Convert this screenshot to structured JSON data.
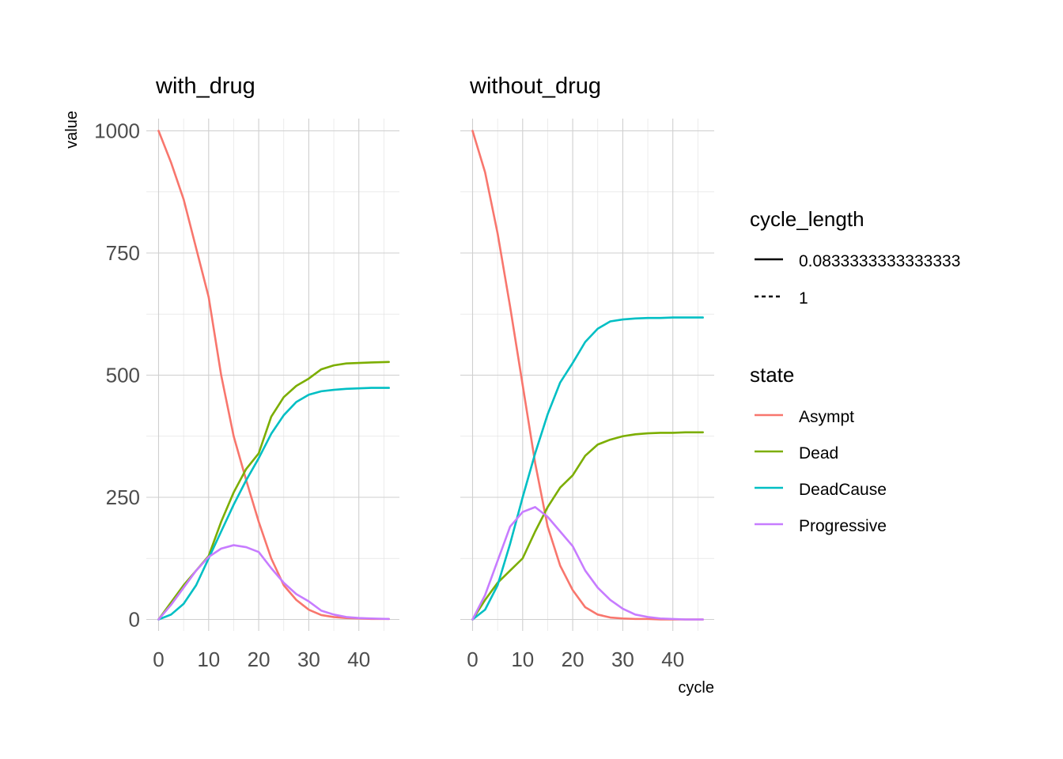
{
  "chart_data": {
    "type": "line",
    "xlabel": "cycle",
    "ylabel": "value",
    "xlim": [
      0,
      46
    ],
    "ylim": [
      0,
      1000
    ],
    "x_ticks": [
      0,
      10,
      20,
      30,
      40
    ],
    "y_ticks": [
      0,
      250,
      500,
      750,
      1000
    ],
    "x_tick_labels": [
      "0",
      "10",
      "20",
      "30",
      "40"
    ],
    "y_tick_labels": [
      "0",
      "250",
      "500",
      "750",
      "1000"
    ],
    "grid": true,
    "legend_position": "right",
    "legends": [
      {
        "title": "cycle_length",
        "items": [
          {
            "label": "0.0833333333333333",
            "dash": "solid"
          },
          {
            "label": "1",
            "dash": "dashed"
          }
        ]
      },
      {
        "title": "state",
        "items": [
          {
            "label": "Asympt",
            "color": "#F8766D"
          },
          {
            "label": "Dead",
            "color": "#7CAE00"
          },
          {
            "label": "DeadCause",
            "color": "#00BFC4"
          },
          {
            "label": "Progressive",
            "color": "#C77CFF"
          }
        ]
      }
    ],
    "panels": [
      {
        "title": "with_drug",
        "x": [
          0,
          2.5,
          5,
          7.5,
          10,
          12.5,
          15,
          17.5,
          20,
          22.5,
          25,
          27.5,
          30,
          32.5,
          35,
          37.5,
          40,
          42.5,
          46
        ],
        "series": [
          {
            "name": "Asympt",
            "color": "#F8766D",
            "values": [
              1000,
              935,
              860,
              760,
              660,
              500,
              375,
              285,
              200,
              125,
              70,
              40,
              20,
              9,
              5,
              3,
              2,
              1,
              1
            ]
          },
          {
            "name": "Dead",
            "color": "#7CAE00",
            "values": [
              0,
              35,
              70,
              100,
              130,
              200,
              260,
              308,
              340,
              415,
              455,
              478,
              493,
              512,
              520,
              524,
              525,
              526,
              527
            ]
          },
          {
            "name": "DeadCause",
            "color": "#00BFC4",
            "values": [
              0,
              10,
              32,
              70,
              125,
              180,
              235,
              285,
              330,
              380,
              418,
              445,
              460,
              467,
              470,
              472,
              473,
              474,
              474
            ]
          },
          {
            "name": "Progressive",
            "color": "#C77CFF",
            "values": [
              0,
              30,
              65,
              100,
              128,
              145,
              152,
              148,
              138,
              105,
              75,
              52,
              37,
              18,
              10,
              5,
              3,
              2,
              1
            ]
          }
        ]
      },
      {
        "title": "without_drug",
        "x": [
          0,
          2.5,
          5,
          7.5,
          10,
          12.5,
          15,
          17.5,
          20,
          22.5,
          25,
          27.5,
          30,
          32.5,
          35,
          37.5,
          40,
          42.5,
          46
        ],
        "series": [
          {
            "name": "Asympt",
            "color": "#F8766D",
            "values": [
              1000,
              915,
              790,
              640,
              480,
              320,
              190,
              110,
              60,
              25,
              10,
              4,
              2,
              1,
              1,
              0,
              0,
              0,
              0
            ]
          },
          {
            "name": "Dead",
            "color": "#7CAE00",
            "values": [
              0,
              40,
              75,
              100,
              125,
              180,
              230,
              270,
              295,
              335,
              358,
              368,
              375,
              379,
              381,
              382,
              382,
              383,
              383
            ]
          },
          {
            "name": "DeadCause",
            "color": "#00BFC4",
            "values": [
              0,
              20,
              70,
              155,
              250,
              340,
              420,
              485,
              525,
              568,
              595,
              610,
              614,
              616,
              617,
              617,
              618,
              618,
              618
            ]
          },
          {
            "name": "Progressive",
            "color": "#C77CFF",
            "values": [
              0,
              50,
              120,
              190,
              220,
              230,
              210,
              180,
              150,
              100,
              65,
              40,
              22,
              10,
              5,
              2,
              1,
              0,
              0
            ]
          }
        ]
      }
    ]
  }
}
